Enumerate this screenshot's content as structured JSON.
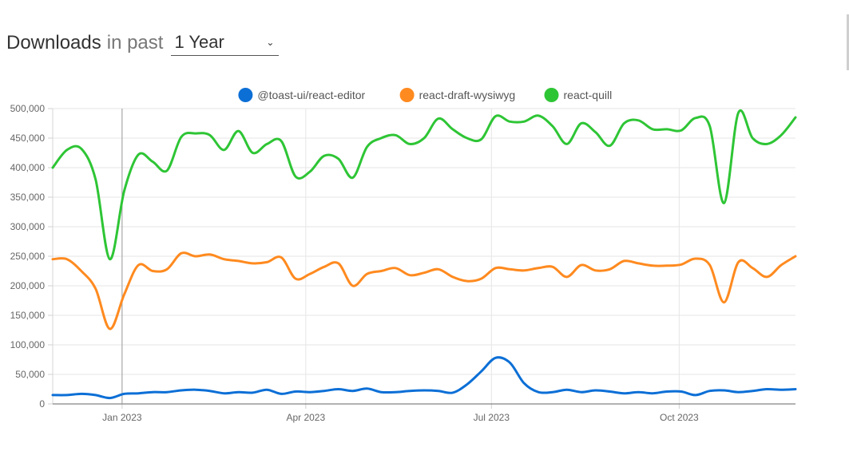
{
  "header": {
    "title": "Downloads",
    "subtitle": "in past",
    "period": "1 Year",
    "chevron_icon": "chevron-down-icon"
  },
  "chart_data": {
    "type": "line",
    "title": "",
    "xlabel": "",
    "ylabel": "",
    "grid": true,
    "legend_position": "top",
    "ylim": [
      0,
      500000
    ],
    "y_ticks": [
      0,
      50000,
      100000,
      150000,
      200000,
      250000,
      300000,
      350000,
      400000,
      450000,
      500000
    ],
    "y_tick_labels": [
      "0",
      "50,000",
      "100,000",
      "150,000",
      "200,000",
      "250,000",
      "300,000",
      "350,000",
      "400,000",
      "450,000",
      "500,000"
    ],
    "x_range": [
      "2022-11-28",
      "2023-11-27"
    ],
    "x_ticks": [
      {
        "date": "2023-01-01",
        "label": "Jan 2023"
      },
      {
        "date": "2023-04-01",
        "label": "Apr 2023"
      },
      {
        "date": "2023-07-01",
        "label": "Jul 2023"
      },
      {
        "date": "2023-10-01",
        "label": "Oct 2023"
      }
    ],
    "hover_line_date": "2023-01-01",
    "x": [
      "2022-11-28",
      "2022-12-05",
      "2022-12-12",
      "2022-12-19",
      "2022-12-26",
      "2023-01-02",
      "2023-01-09",
      "2023-01-16",
      "2023-01-23",
      "2023-01-30",
      "2023-02-06",
      "2023-02-13",
      "2023-02-20",
      "2023-02-27",
      "2023-03-06",
      "2023-03-13",
      "2023-03-20",
      "2023-03-27",
      "2023-04-03",
      "2023-04-10",
      "2023-04-17",
      "2023-04-24",
      "2023-05-01",
      "2023-05-08",
      "2023-05-15",
      "2023-05-22",
      "2023-05-29",
      "2023-06-05",
      "2023-06-12",
      "2023-06-19",
      "2023-06-26",
      "2023-07-03",
      "2023-07-10",
      "2023-07-17",
      "2023-07-24",
      "2023-07-31",
      "2023-08-07",
      "2023-08-14",
      "2023-08-21",
      "2023-08-28",
      "2023-09-04",
      "2023-09-11",
      "2023-09-18",
      "2023-09-25",
      "2023-10-02",
      "2023-10-09",
      "2023-10-16",
      "2023-10-23",
      "2023-10-30",
      "2023-11-06",
      "2023-11-13",
      "2023-11-20",
      "2023-11-27"
    ],
    "series": [
      {
        "name": "@toast-ui/react-editor",
        "color": "#0c6fd6",
        "values": [
          15000,
          15000,
          17000,
          15000,
          10000,
          17000,
          18000,
          20000,
          20000,
          23000,
          24000,
          22000,
          18000,
          20000,
          19000,
          24000,
          17000,
          21000,
          20000,
          22000,
          25000,
          22000,
          26000,
          20000,
          20000,
          22000,
          23000,
          22000,
          19000,
          33000,
          55000,
          78000,
          70000,
          35000,
          20000,
          20000,
          24000,
          20000,
          23000,
          21000,
          18000,
          20000,
          18000,
          21000,
          21000,
          15000,
          22000,
          23000,
          20000,
          22000,
          25000,
          24000,
          25000
        ]
      },
      {
        "name": "react-draft-wysiwyg",
        "color": "#ff8a1f",
        "values": [
          245000,
          245000,
          225000,
          195000,
          127000,
          185000,
          235000,
          225000,
          228000,
          255000,
          250000,
          253000,
          245000,
          242000,
          238000,
          240000,
          248000,
          212000,
          220000,
          232000,
          238000,
          200000,
          220000,
          225000,
          230000,
          218000,
          222000,
          228000,
          215000,
          208000,
          212000,
          230000,
          228000,
          226000,
          230000,
          232000,
          215000,
          235000,
          226000,
          228000,
          242000,
          238000,
          234000,
          234000,
          236000,
          246000,
          235000,
          172000,
          240000,
          230000,
          215000,
          235000,
          250000
        ]
      },
      {
        "name": "react-quill",
        "color": "#2ec535",
        "values": [
          400000,
          430000,
          432000,
          380000,
          245000,
          360000,
          422000,
          410000,
          395000,
          452000,
          458000,
          455000,
          430000,
          462000,
          425000,
          440000,
          445000,
          385000,
          393000,
          420000,
          415000,
          383000,
          435000,
          450000,
          455000,
          440000,
          450000,
          483000,
          465000,
          450000,
          448000,
          487000,
          478000,
          478000,
          488000,
          470000,
          440000,
          475000,
          460000,
          437000,
          475000,
          480000,
          465000,
          465000,
          463000,
          484000,
          470000,
          340000,
          493000,
          450000,
          440000,
          455000,
          485000
        ]
      }
    ]
  }
}
